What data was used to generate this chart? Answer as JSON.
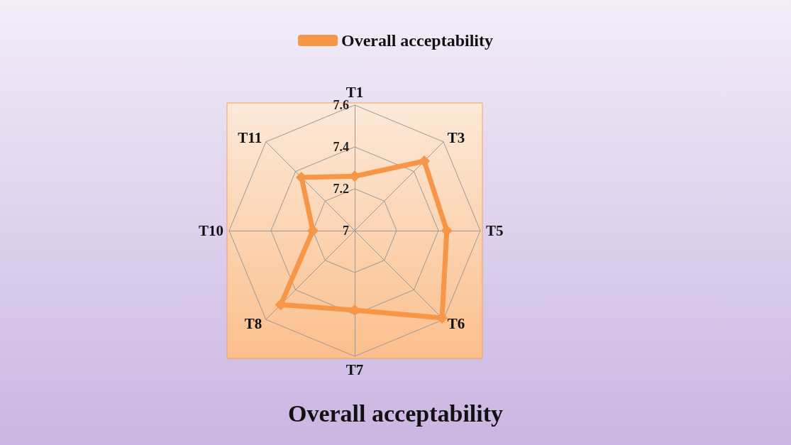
{
  "chart_data": {
    "type": "radar",
    "title": "Overall acceptability",
    "categories": [
      "T1",
      "T3",
      "T5",
      "T6",
      "T7",
      "T8",
      "T10",
      "T11"
    ],
    "series": [
      {
        "name": "Overall acceptability",
        "color": "#f79646",
        "values": [
          7.26,
          7.47,
          7.44,
          7.59,
          7.38,
          7.5,
          7.2,
          7.36
        ]
      }
    ],
    "ylim": [
      7,
      7.6
    ],
    "yticks": [
      7,
      7.2,
      7.4,
      7.6
    ],
    "legend": "top",
    "marker": "diamond",
    "line_style": "solid",
    "grid": true
  }
}
